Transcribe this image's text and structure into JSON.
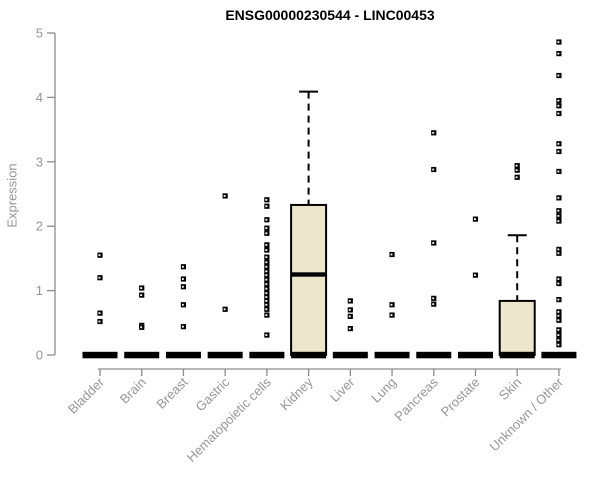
{
  "chart_data": {
    "type": "boxplot",
    "title": "ENSG00000230544 - LINC00453",
    "ylabel": "Expression",
    "xlabel": "",
    "ylim": [
      0,
      5
    ],
    "yticks": [
      0,
      1,
      2,
      3,
      4,
      5
    ],
    "grid": false,
    "legend": "none",
    "categories": [
      "Bladder",
      "Brain",
      "Breast",
      "Gastric",
      "Hematopoietic cells",
      "Kidney",
      "Liver",
      "Lung",
      "Pancreas",
      "Prostate",
      "Skin",
      "Unknown / Other"
    ],
    "series": [
      {
        "name": "Bladder",
        "box": {
          "whisker_low": 0,
          "q1": 0,
          "median": 0,
          "q3": 0,
          "whisker_high": 0
        },
        "points": [
          1.55,
          1.2,
          0.65,
          0.52
        ]
      },
      {
        "name": "Brain",
        "box": {
          "whisker_low": 0,
          "q1": 0,
          "median": 0,
          "q3": 0,
          "whisker_high": 0
        },
        "points": [
          1.04,
          0.93,
          0.46,
          0.43
        ]
      },
      {
        "name": "Breast",
        "box": {
          "whisker_low": 0,
          "q1": 0,
          "median": 0,
          "q3": 0,
          "whisker_high": 0
        },
        "points": [
          1.37,
          1.18,
          1.06,
          0.78,
          0.44
        ]
      },
      {
        "name": "Gastric",
        "box": {
          "whisker_low": 0,
          "q1": 0,
          "median": 0,
          "q3": 0,
          "whisker_high": 0
        },
        "points": [
          2.47,
          0.71
        ]
      },
      {
        "name": "Hematopoietic cells",
        "box": {
          "whisker_low": 0,
          "q1": 0,
          "median": 0,
          "q3": 0,
          "whisker_high": 0
        },
        "points": [
          2.41,
          2.31,
          2.1,
          1.97,
          1.89,
          1.71,
          1.63,
          1.52,
          1.44,
          1.37,
          1.3,
          1.24,
          1.17,
          1.1,
          1.03,
          0.96,
          0.9,
          0.84,
          0.78,
          0.71,
          0.62,
          0.31
        ]
      },
      {
        "name": "Kidney",
        "box": {
          "whisker_low": 0,
          "q1": 0,
          "median": 1.25,
          "q3": 2.33,
          "whisker_high": 4.09
        },
        "points": []
      },
      {
        "name": "Liver",
        "box": {
          "whisker_low": 0,
          "q1": 0,
          "median": 0,
          "q3": 0,
          "whisker_high": 0
        },
        "points": [
          0.84,
          0.7,
          0.6,
          0.41
        ]
      },
      {
        "name": "Lung",
        "box": {
          "whisker_low": 0,
          "q1": 0,
          "median": 0,
          "q3": 0,
          "whisker_high": 0
        },
        "points": [
          1.56,
          0.78,
          0.62
        ]
      },
      {
        "name": "Pancreas",
        "box": {
          "whisker_low": 0,
          "q1": 0,
          "median": 0,
          "q3": 0,
          "whisker_high": 0
        },
        "points": [
          3.45,
          2.88,
          1.74,
          0.88,
          0.79
        ]
      },
      {
        "name": "Prostate",
        "box": {
          "whisker_low": 0,
          "q1": 0,
          "median": 0,
          "q3": 0,
          "whisker_high": 0
        },
        "points": [
          2.11,
          1.24
        ]
      },
      {
        "name": "Skin",
        "box": {
          "whisker_low": 0,
          "q1": 0,
          "median": 0,
          "q3": 0.84,
          "whisker_high": 1.86
        },
        "points": [
          2.94,
          2.87,
          2.76
        ]
      },
      {
        "name": "Unknown / Other",
        "box": {
          "whisker_low": 0,
          "q1": 0,
          "median": 0,
          "q3": 0,
          "whisker_high": 0
        },
        "points": [
          4.86,
          4.68,
          4.34,
          3.95,
          3.87,
          3.75,
          3.28,
          3.16,
          2.85,
          2.44,
          2.24,
          2.16,
          2.08,
          1.64,
          1.58,
          1.18,
          1.11,
          0.86,
          0.67,
          0.61,
          0.54,
          0.39,
          0.31,
          0.23,
          0.16
        ]
      }
    ],
    "colors": {
      "box_fill": "#ECE7CC",
      "box_stroke": "#000000",
      "median": "#000000",
      "point": "#000000",
      "axis_line": "#8c8c8c",
      "axis_text": "#969696",
      "title_text": "#000000",
      "background": "#ffffff"
    }
  }
}
